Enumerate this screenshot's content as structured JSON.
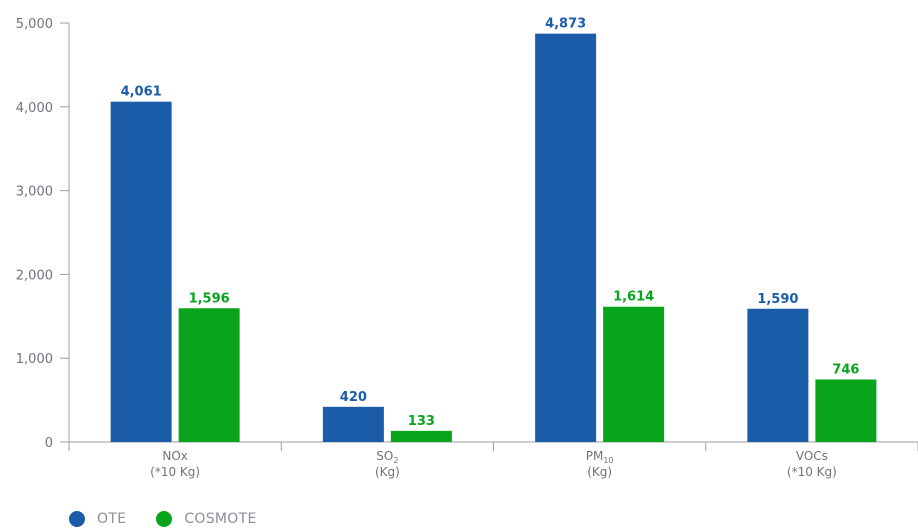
{
  "chart_data": {
    "type": "bar",
    "categories": [
      {
        "label": "NOx",
        "unit": "(*10 Kg)"
      },
      {
        "label": "SO",
        "sub": "2",
        "unit": "(Kg)"
      },
      {
        "label": "PM",
        "sub": "10",
        "unit": "(Kg)"
      },
      {
        "label": "VOCs",
        "unit": "(*10 Kg)"
      }
    ],
    "series": [
      {
        "name": "OTE",
        "color": "#1b5ca9",
        "values": [
          4061,
          420,
          4873,
          1590
        ],
        "labels": [
          "4,061",
          "420",
          "4,873",
          "1,590"
        ]
      },
      {
        "name": "COSMOTE",
        "color": "#07a41c",
        "values": [
          1596,
          133,
          1614,
          746
        ],
        "labels": [
          "1,596",
          "133",
          "1,614",
          "746"
        ]
      }
    ],
    "yticks": [
      0,
      1000,
      2000,
      3000,
      4000,
      5000
    ],
    "ytick_labels": [
      "0",
      "1,000",
      "2,000",
      "3,000",
      "4,000",
      "5,000"
    ],
    "ylim": [
      0,
      5000
    ],
    "legend_position": "bottom-left",
    "grid": false
  },
  "legend": {
    "ote": "OTE",
    "cosmote": "COSMOTE"
  }
}
